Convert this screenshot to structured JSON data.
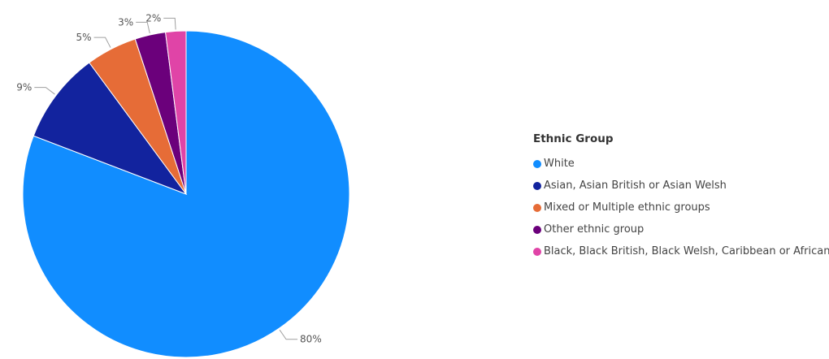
{
  "chart_data": {
    "type": "pie",
    "legend_title": "Ethnic Group",
    "legend_position": "right",
    "slices": [
      {
        "label": "White",
        "value": 80,
        "display": "80%",
        "color": "#118DFF"
      },
      {
        "label": "Asian, Asian British or Asian Welsh",
        "value": 9,
        "display": "9%",
        "color": "#12239E"
      },
      {
        "label": "Mixed or Multiple ethnic groups",
        "value": 5,
        "display": "5%",
        "color": "#E66C37"
      },
      {
        "label": "Other ethnic group",
        "value": 3,
        "display": "3%",
        "color": "#6B007B"
      },
      {
        "label": "Black, Black British, Black Welsh, Caribbean or African",
        "value": 2,
        "display": "2%",
        "color": "#E044A7"
      }
    ]
  }
}
